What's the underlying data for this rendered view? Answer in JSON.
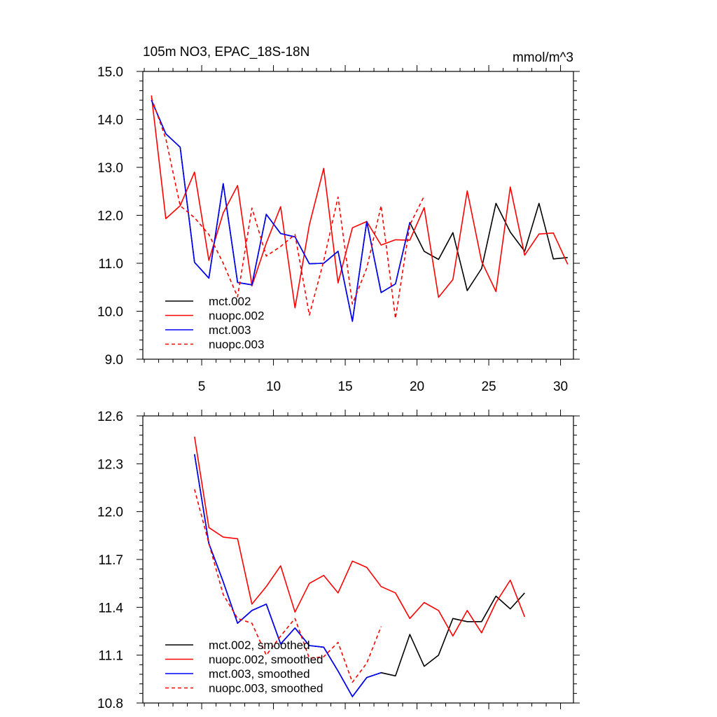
{
  "chart_data": [
    {
      "type": "line",
      "title": "105m NO3, EPAC_18S-18N",
      "units_label": "mmol/m^3",
      "xlabel": "",
      "ylabel": "",
      "xlim": [
        0.9,
        30.9
      ],
      "ylim": [
        9.0,
        15.0
      ],
      "x_ticks": [
        5,
        10,
        15,
        20,
        25,
        30
      ],
      "x_tick_labels": [
        "5",
        "10",
        "15",
        "20",
        "25",
        "30"
      ],
      "y_ticks": [
        9.0,
        10.0,
        11.0,
        12.0,
        13.0,
        14.0,
        15.0
      ],
      "y_tick_labels": [
        "9.0",
        "10.0",
        "11.0",
        "12.0",
        "13.0",
        "14.0",
        "15.0"
      ],
      "legend_position": "bottom-left",
      "series": [
        {
          "name": "mct.002",
          "color": "#000000",
          "dashed": false,
          "x": [
            1.5,
            2.5,
            3.5,
            4.5,
            5.5,
            6.5,
            7.5,
            8.5,
            9.5,
            10.5,
            11.5,
            12.5,
            13.5,
            14.5,
            15.5,
            16.5,
            17.5,
            18.5,
            19.5,
            20.5,
            21.5,
            22.5,
            23.5,
            24.5,
            25.5,
            26.5,
            27.5,
            28.5,
            29.5,
            30.5
          ],
          "values": [
            14.4,
            13.7,
            13.42,
            11.02,
            10.69,
            12.66,
            10.6,
            10.55,
            12.02,
            11.62,
            11.55,
            10.99,
            11.0,
            11.25,
            9.79,
            11.87,
            10.39,
            10.57,
            11.85,
            11.25,
            11.08,
            11.64,
            10.43,
            10.89,
            12.25,
            11.65,
            11.25,
            12.25,
            11.09,
            11.12
          ]
        },
        {
          "name": "nuopc.002",
          "color": "#ff0000",
          "dashed": false,
          "x": [
            1.5,
            2.5,
            3.5,
            4.5,
            5.5,
            6.5,
            7.5,
            8.5,
            9.5,
            10.5,
            11.5,
            12.5,
            13.5,
            14.5,
            15.5,
            16.5,
            17.5,
            18.5,
            19.5,
            20.5,
            21.5,
            22.5,
            23.5,
            24.5,
            25.5,
            26.5,
            27.5,
            28.5,
            29.5,
            30.5
          ],
          "values": [
            14.5,
            11.93,
            12.2,
            12.9,
            11.06,
            12.05,
            12.62,
            10.53,
            11.42,
            12.18,
            10.07,
            11.8,
            12.98,
            10.59,
            11.74,
            11.87,
            11.38,
            11.49,
            11.48,
            12.16,
            10.29,
            10.66,
            12.51,
            11.04,
            10.41,
            12.59,
            11.17,
            11.61,
            11.63,
            10.98
          ]
        },
        {
          "name": "mct.003",
          "color": "#0000ff",
          "dashed": false,
          "x": [
            1.5,
            2.5,
            3.5,
            4.5,
            5.5,
            6.5,
            7.5,
            8.5,
            9.5,
            10.5,
            11.5,
            12.5,
            13.5,
            14.5,
            15.5,
            16.5,
            17.5,
            18.5,
            19.5
          ],
          "values": [
            14.4,
            13.7,
            13.42,
            11.02,
            10.69,
            12.66,
            10.6,
            10.55,
            12.02,
            11.62,
            11.55,
            10.99,
            11.0,
            11.25,
            9.79,
            11.87,
            10.39,
            10.57,
            11.85
          ]
        },
        {
          "name": "nuopc.003",
          "color": "#ff0000",
          "dashed": true,
          "x": [
            1.5,
            2.5,
            3.5,
            4.5,
            5.5,
            6.5,
            7.5,
            8.5,
            9.5,
            10.5,
            11.5,
            12.5,
            13.5,
            14.5,
            15.5,
            16.5,
            17.5,
            18.5,
            19.5,
            20.5
          ],
          "values": [
            14.45,
            13.6,
            12.2,
            11.95,
            11.6,
            11.0,
            10.3,
            12.15,
            11.15,
            11.35,
            11.6,
            9.92,
            11.05,
            12.38,
            10.15,
            10.9,
            12.2,
            9.85,
            11.8,
            12.4
          ]
        }
      ]
    },
    {
      "type": "line",
      "title": "",
      "xlabel": "",
      "ylabel": "",
      "xlim": [
        0.9,
        30.9
      ],
      "ylim": [
        10.8,
        12.6
      ],
      "x_ticks": [
        5,
        10,
        15,
        20,
        25,
        30
      ],
      "x_tick_labels": [],
      "y_ticks": [
        10.8,
        11.1,
        11.4,
        11.7,
        12.0,
        12.3,
        12.6
      ],
      "y_tick_labels": [
        "10.8",
        "11.1",
        "11.4",
        "11.7",
        "12.0",
        "12.3",
        "12.6"
      ],
      "legend_position": "bottom-left",
      "series": [
        {
          "name": "mct.002, smoothed",
          "color": "#000000",
          "dashed": false,
          "x": [
            4.5,
            5.5,
            6.5,
            7.5,
            8.5,
            9.5,
            10.5,
            11.5,
            12.5,
            13.5,
            14.5,
            15.5,
            16.5,
            17.5,
            18.5,
            19.5,
            20.5,
            21.5,
            22.5,
            23.5,
            24.5,
            25.5,
            26.5,
            27.5
          ],
          "values": [
            12.36,
            11.8,
            11.56,
            11.3,
            11.38,
            11.42,
            11.17,
            11.27,
            11.16,
            11.15,
            11.0,
            10.84,
            10.96,
            10.99,
            10.97,
            11.23,
            11.03,
            11.1,
            11.33,
            11.31,
            11.31,
            11.47,
            11.39,
            11.49
          ]
        },
        {
          "name": "nuopc.002, smoothed",
          "color": "#ff0000",
          "dashed": false,
          "x": [
            4.5,
            5.5,
            6.5,
            7.5,
            8.5,
            9.5,
            10.5,
            11.5,
            12.5,
            13.5,
            14.5,
            15.5,
            16.5,
            17.5,
            18.5,
            19.5,
            20.5,
            21.5,
            22.5,
            23.5,
            24.5,
            25.5,
            26.5,
            27.5
          ],
          "values": [
            12.47,
            11.9,
            11.84,
            11.83,
            11.42,
            11.53,
            11.66,
            11.37,
            11.55,
            11.6,
            11.49,
            11.69,
            11.65,
            11.53,
            11.49,
            11.33,
            11.43,
            11.38,
            11.22,
            11.38,
            11.24,
            11.43,
            11.57,
            11.34
          ]
        },
        {
          "name": "mct.003, smoothed",
          "color": "#0000ff",
          "dashed": false,
          "x": [
            4.5,
            5.5,
            6.5,
            7.5,
            8.5,
            9.5,
            10.5,
            11.5,
            12.5,
            13.5,
            14.5,
            15.5,
            16.5,
            17.5
          ],
          "values": [
            12.36,
            11.8,
            11.56,
            11.3,
            11.38,
            11.42,
            11.17,
            11.27,
            11.16,
            11.15,
            11.0,
            10.84,
            10.96,
            10.99
          ]
        },
        {
          "name": "nuopc.003, smoothed",
          "color": "#ff0000",
          "dashed": true,
          "x": [
            4.5,
            5.5,
            6.5,
            7.5,
            8.5,
            9.5,
            10.5,
            11.5,
            12.5,
            13.5,
            14.5,
            15.5,
            16.5,
            17.5
          ],
          "values": [
            12.14,
            11.8,
            11.48,
            11.33,
            11.3,
            11.1,
            11.22,
            11.33,
            11.08,
            11.09,
            11.18,
            10.93,
            11.05,
            11.28
          ]
        }
      ]
    }
  ]
}
